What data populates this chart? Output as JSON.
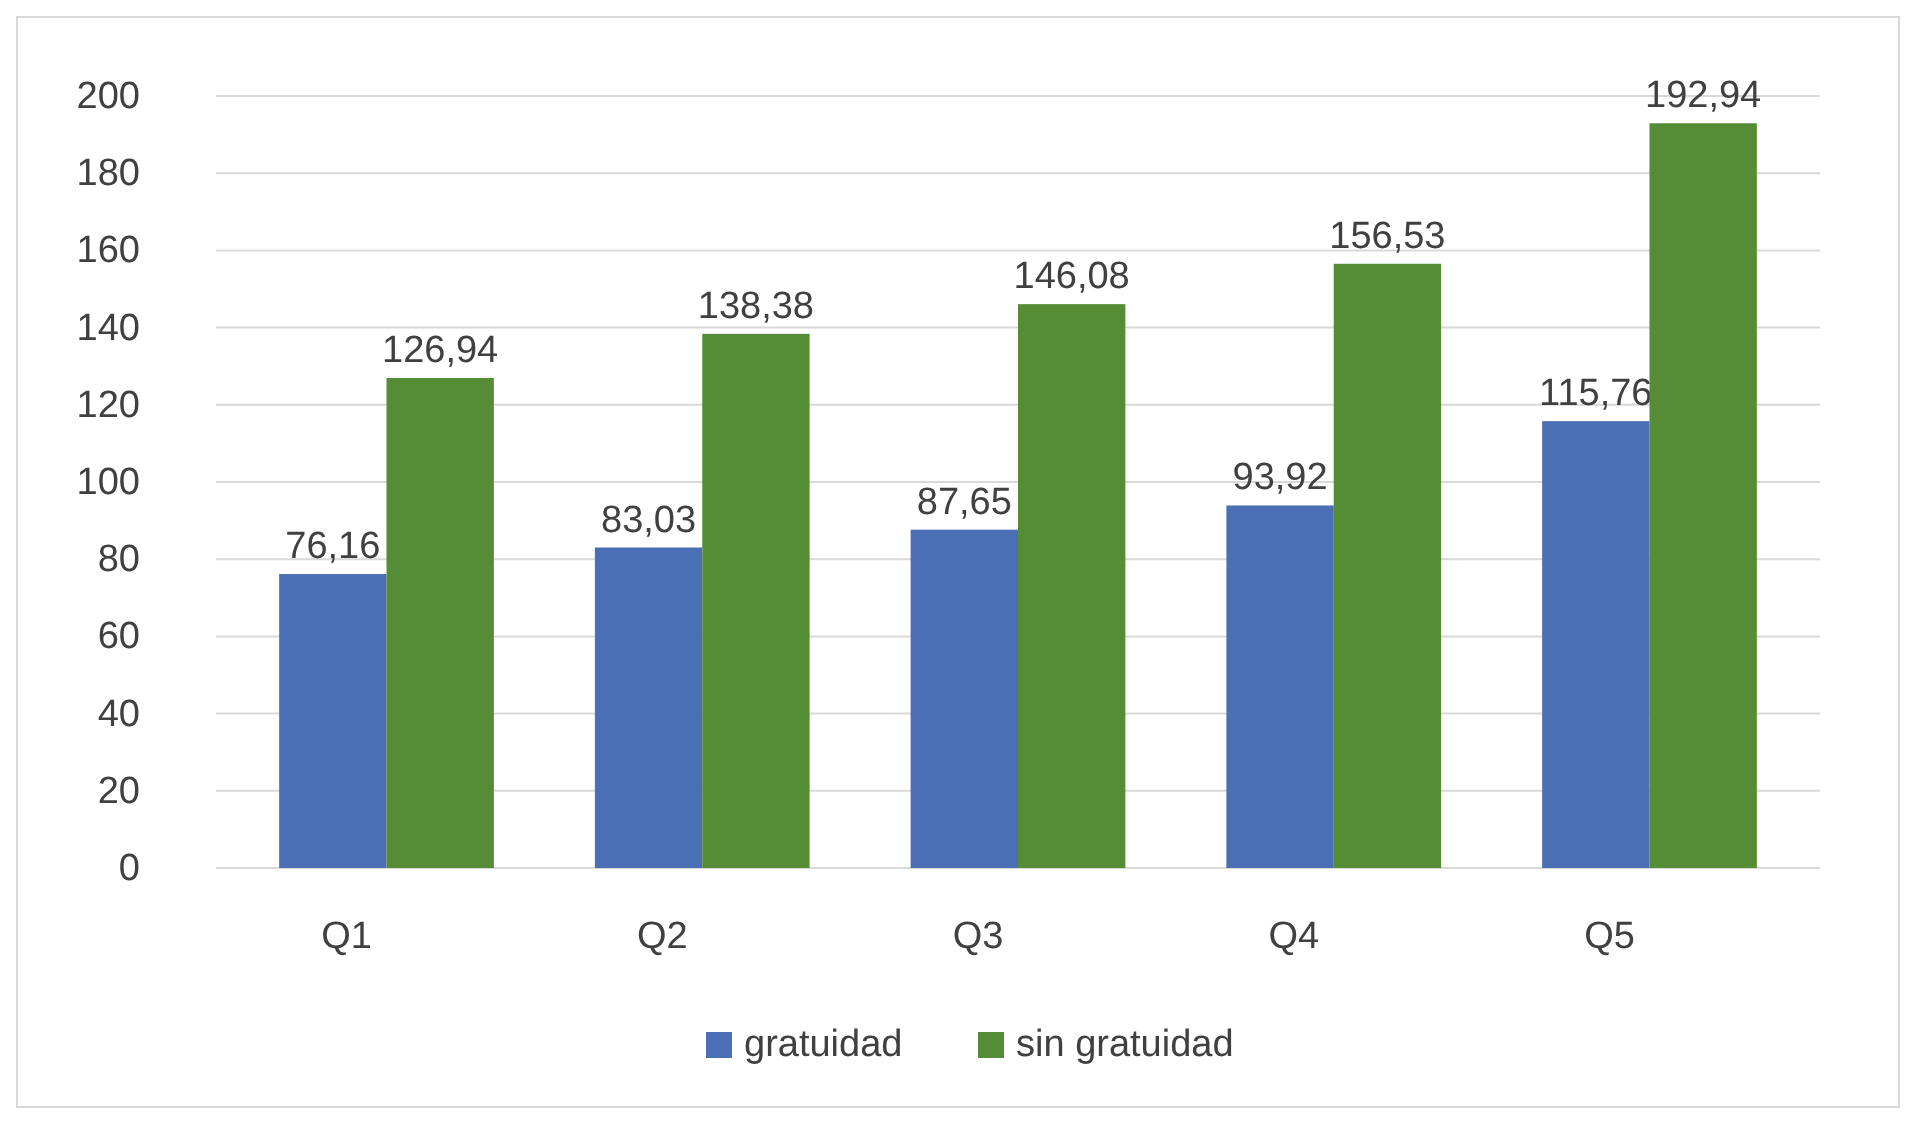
{
  "chart_data": {
    "type": "bar",
    "categories": [
      "Q1",
      "Q2",
      "Q3",
      "Q4",
      "Q5"
    ],
    "series": [
      {
        "name": "gratuidad",
        "color": "#4a6fb5",
        "values": [
          76.16,
          83.03,
          87.65,
          93.92,
          115.76
        ],
        "value_labels": [
          "76,16",
          "83,03",
          "87,65",
          "93,92",
          "115,76"
        ]
      },
      {
        "name": "sin gratuidad",
        "color": "#548d35",
        "values": [
          126.94,
          138.38,
          146.08,
          156.53,
          192.94
        ],
        "value_labels": [
          "126,94",
          "138,38",
          "146,08",
          "156,53",
          "192,94"
        ]
      }
    ],
    "ylim": [
      0,
      200
    ],
    "yticks": [
      0,
      20,
      40,
      60,
      80,
      100,
      120,
      140,
      160,
      180,
      200
    ],
    "grid": "y",
    "legend": "bottom"
  }
}
